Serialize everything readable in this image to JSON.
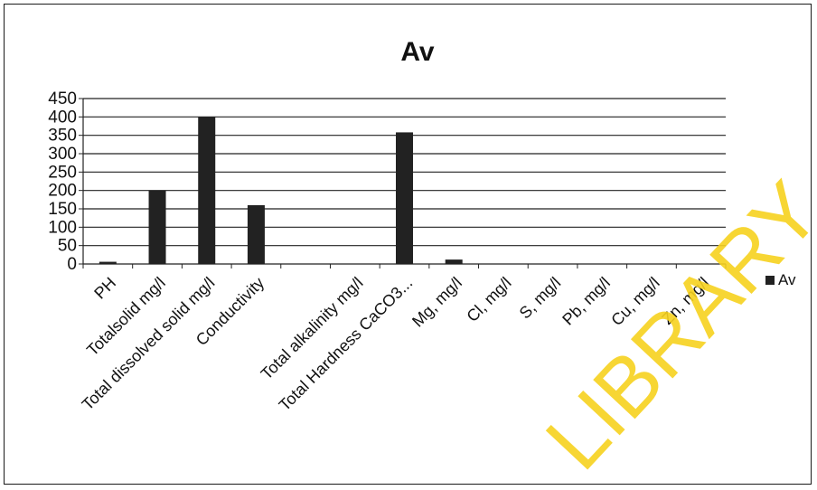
{
  "chart_data": {
    "type": "bar",
    "title": "Av",
    "categories": [
      "PH",
      "Totalsolid mg/l",
      "Total dissolved solid mg/l",
      "Conductivity",
      "",
      "Total alkalinity mg/l",
      "Total Hardness CaCO3...",
      "Mg, mg/l",
      "Cl, mg/l",
      "S, mg/l",
      "Pb, mg/l",
      "Cu, mg/l",
      "Zn, mg/l"
    ],
    "series": [
      {
        "name": "Av",
        "values": [
          6,
          200,
          400,
          160,
          0,
          0,
          358,
          12,
          0,
          0,
          0,
          0,
          0
        ]
      }
    ],
    "yticks": [
      "0",
      "50",
      "100",
      "150",
      "200",
      "250",
      "300",
      "350",
      "400",
      "450"
    ],
    "ylim": [
      0,
      450
    ],
    "grid": true,
    "legend": "right",
    "bar_color": "#222222"
  },
  "watermark": "LIBRARY"
}
